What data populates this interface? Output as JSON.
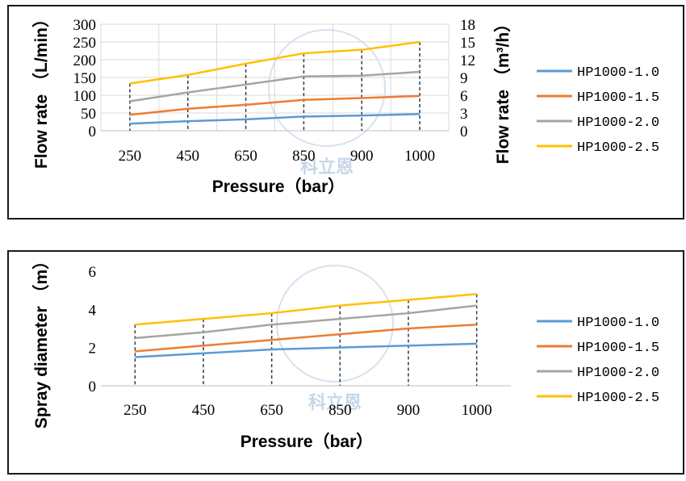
{
  "chart_data": [
    {
      "type": "line",
      "categories": [
        "250",
        "450",
        "650",
        "850",
        "900",
        "1000"
      ],
      "series": [
        {
          "name": "HP1000-1.0",
          "color": "#5b9bd5",
          "values": [
            20,
            27,
            32,
            40,
            43,
            47
          ]
        },
        {
          "name": "HP1000-1.5",
          "color": "#ed7d31",
          "values": [
            45,
            62,
            73,
            87,
            92,
            98
          ]
        },
        {
          "name": "HP1000-2.0",
          "color": "#a5a5a5",
          "values": [
            83,
            108,
            130,
            153,
            155,
            166
          ]
        },
        {
          "name": "HP1000-2.5",
          "color": "#ffc000",
          "values": [
            133,
            157,
            189,
            218,
            228,
            250
          ]
        }
      ],
      "xlabel": "Pressure（bar）",
      "ylabel": "Flow rate （L/min）",
      "y2label": "Flow rate （m³/h）",
      "ylim": [
        0,
        300
      ],
      "yticks": [
        "0",
        "50",
        "100",
        "150",
        "200",
        "250",
        "300"
      ],
      "y2lim": [
        0,
        18
      ],
      "y2ticks": [
        "0",
        "3",
        "6",
        "9",
        "12",
        "15",
        "18"
      ],
      "grid": true,
      "drop_lines": true,
      "legend_position": "right"
    },
    {
      "type": "line",
      "categories": [
        "250",
        "450",
        "650",
        "850",
        "900",
        "1000"
      ],
      "series": [
        {
          "name": "HP1000-1.0",
          "color": "#5b9bd5",
          "values": [
            1.5,
            1.7,
            1.9,
            2.0,
            2.1,
            2.2
          ]
        },
        {
          "name": "HP1000-1.5",
          "color": "#ed7d31",
          "values": [
            1.8,
            2.1,
            2.4,
            2.7,
            3.0,
            3.2
          ]
        },
        {
          "name": "HP1000-2.0",
          "color": "#a5a5a5",
          "values": [
            2.5,
            2.8,
            3.2,
            3.5,
            3.8,
            4.2
          ]
        },
        {
          "name": "HP1000-2.5",
          "color": "#ffc000",
          "values": [
            3.2,
            3.5,
            3.8,
            4.2,
            4.5,
            4.8
          ]
        }
      ],
      "xlabel": "Pressure（bar）",
      "ylabel": "Spray diameter （m）",
      "ylim": [
        0,
        6
      ],
      "yticks": [
        "0",
        "2",
        "4",
        "6"
      ],
      "grid": false,
      "drop_lines": true,
      "legend_position": "right"
    }
  ],
  "watermark": {
    "text": "科立恩",
    "color": "#c7d7ea"
  }
}
